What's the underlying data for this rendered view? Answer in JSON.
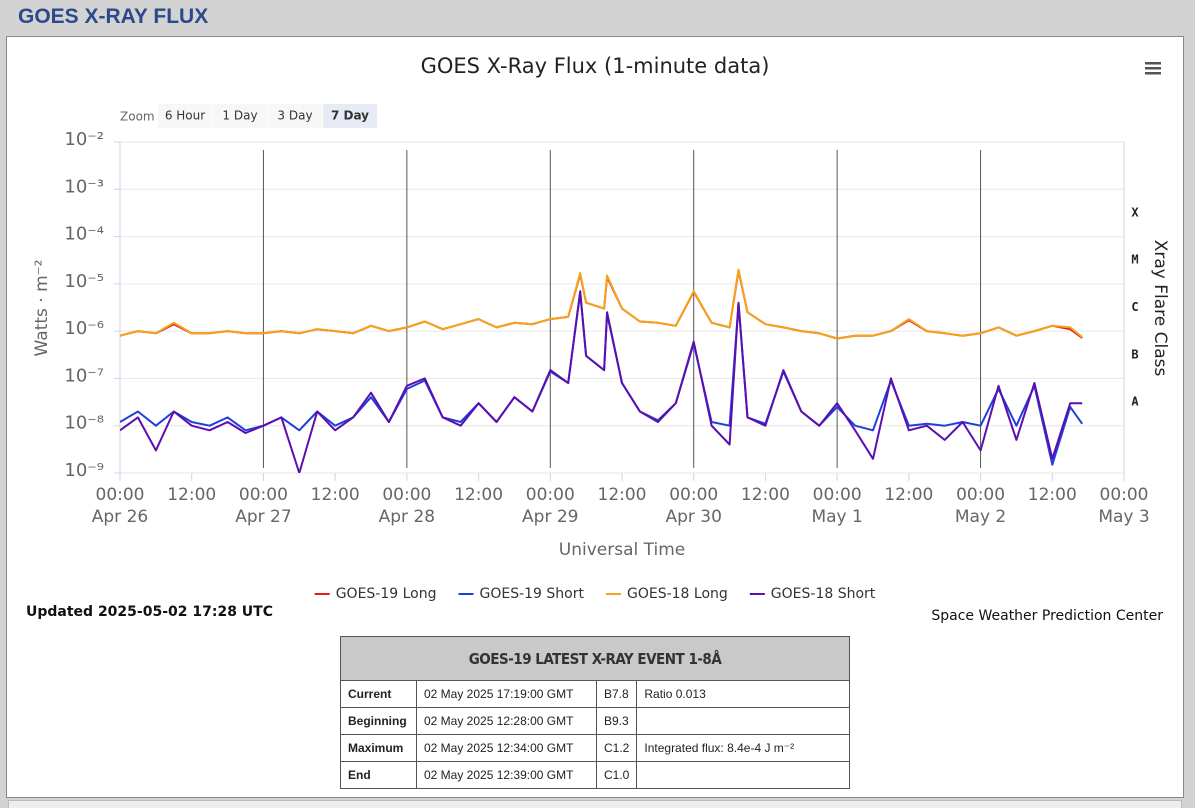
{
  "header": {
    "title": "GOES X-RAY FLUX"
  },
  "zoom": {
    "label": "Zoom",
    "buttons": [
      "6 Hour",
      "1 Day",
      "3 Day",
      "7 Day"
    ],
    "selected": "7 Day"
  },
  "chart_data": {
    "type": "line",
    "title": "GOES X-Ray Flux (1-minute data)",
    "y_label": "Watts · m⁻²",
    "x_label": "Universal Time",
    "y2_label": "Xray Flare Class",
    "log_y": true,
    "grid": true,
    "legend": "bottom",
    "ylim": [
      1e-09,
      0.01
    ],
    "yticks": [
      {
        "value": 1e-09,
        "label": "10⁻⁹"
      },
      {
        "value": 1e-08,
        "label": "10⁻⁸"
      },
      {
        "value": 1e-07,
        "label": "10⁻⁷"
      },
      {
        "value": 1e-06,
        "label": "10⁻⁶"
      },
      {
        "value": 1e-05,
        "label": "10⁻⁵"
      },
      {
        "value": 0.0001,
        "label": "10⁻⁴"
      },
      {
        "value": 0.001,
        "label": "10⁻³"
      },
      {
        "value": 0.01,
        "label": "10⁻²"
      }
    ],
    "y2lim": [
      1e-09,
      0.01
    ],
    "y2ticks": [
      {
        "value": 3.16e-08,
        "label": "A"
      },
      {
        "value": 3.16e-07,
        "label": "B"
      },
      {
        "value": 3.16e-06,
        "label": "C"
      },
      {
        "value": 3.16e-05,
        "label": "M"
      },
      {
        "value": 0.000316,
        "label": "X"
      }
    ],
    "xlim": [
      "Apr 26 00:00",
      "May 3 00:00"
    ],
    "xticks": [
      {
        "value": "Apr 26 00:00",
        "label": "00:00",
        "date": "Apr 26"
      },
      {
        "value": "Apr 26 12:00",
        "label": "12:00"
      },
      {
        "value": "Apr 27 00:00",
        "label": "00:00",
        "date": "Apr 27"
      },
      {
        "value": "Apr 27 12:00",
        "label": "12:00"
      },
      {
        "value": "Apr 28 00:00",
        "label": "00:00",
        "date": "Apr 28"
      },
      {
        "value": "Apr 28 12:00",
        "label": "12:00"
      },
      {
        "value": "Apr 29 00:00",
        "label": "00:00",
        "date": "Apr 29"
      },
      {
        "value": "Apr 29 12:00",
        "label": "12:00"
      },
      {
        "value": "Apr 30 00:00",
        "label": "00:00",
        "date": "Apr 30"
      },
      {
        "value": "Apr 30 12:00",
        "label": "12:00"
      },
      {
        "value": "May 1 00:00",
        "label": "00:00",
        "date": "May 1"
      },
      {
        "value": "May 1 12:00",
        "label": "12:00"
      },
      {
        "value": "May 2 00:00",
        "label": "00:00",
        "date": "May 2"
      },
      {
        "value": "May 2 12:00",
        "label": "12:00"
      },
      {
        "value": "May 3 00:00",
        "label": "00:00",
        "date": "May 3"
      }
    ],
    "x": [
      "Apr 26 00:00",
      "Apr 26 03:00",
      "Apr 26 06:00",
      "Apr 26 09:00",
      "Apr 26 12:00",
      "Apr 26 15:00",
      "Apr 26 18:00",
      "Apr 26 21:00",
      "Apr 27 00:00",
      "Apr 27 03:00",
      "Apr 27 06:00",
      "Apr 27 09:00",
      "Apr 27 12:00",
      "Apr 27 15:00",
      "Apr 27 18:00",
      "Apr 27 21:00",
      "Apr 28 00:00",
      "Apr 28 03:00",
      "Apr 28 06:00",
      "Apr 28 09:00",
      "Apr 28 12:00",
      "Apr 28 15:00",
      "Apr 28 18:00",
      "Apr 28 21:00",
      "Apr 29 00:00",
      "Apr 29 03:00",
      "Apr 29 05:00",
      "Apr 29 06:00",
      "Apr 29 09:00",
      "Apr 29 09:30",
      "Apr 29 12:00",
      "Apr 29 15:00",
      "Apr 29 18:00",
      "Apr 29 21:00",
      "Apr 30 00:00",
      "Apr 30 03:00",
      "Apr 30 06:00",
      "Apr 30 07:30",
      "Apr 30 09:00",
      "Apr 30 12:00",
      "Apr 30 15:00",
      "Apr 30 18:00",
      "Apr 30 21:00",
      "May 1 00:00",
      "May 1 03:00",
      "May 1 06:00",
      "May 1 09:00",
      "May 1 12:00",
      "May 1 15:00",
      "May 1 18:00",
      "May 1 21:00",
      "May 2 00:00",
      "May 2 03:00",
      "May 2 06:00",
      "May 2 09:00",
      "May 2 12:00",
      "May 2 15:00",
      "May 2 17:00"
    ],
    "series": [
      {
        "name": "GOES-19 Long",
        "color": "#e41a1c",
        "values": [
          8e-07,
          1e-06,
          9e-07,
          1.4e-06,
          9e-07,
          9e-07,
          1e-06,
          9e-07,
          9e-07,
          1e-06,
          9e-07,
          1.1e-06,
          1e-06,
          9e-07,
          1.3e-06,
          1e-06,
          1.2e-06,
          1.6e-06,
          1.1e-06,
          1.4e-06,
          1.8e-06,
          1.2e-06,
          1.5e-06,
          1.4e-06,
          1.8e-06,
          2e-06,
          1.6e-05,
          4e-06,
          3e-06,
          1.4e-05,
          3e-06,
          1.6e-06,
          1.5e-06,
          1.3e-06,
          6.8e-06,
          1.5e-06,
          1.2e-06,
          1.9e-05,
          2.5e-06,
          1.4e-06,
          1.2e-06,
          1e-06,
          9e-07,
          7e-07,
          8e-07,
          8e-07,
          1e-06,
          1.7e-06,
          1e-06,
          9e-07,
          8e-07,
          9e-07,
          1.2e-06,
          8e-07,
          1e-06,
          1.3e-06,
          1.1e-06,
          7.2e-07
        ]
      },
      {
        "name": "GOES-19 Short",
        "color": "#1f3fdc",
        "values": [
          1.2e-08,
          2e-08,
          1e-08,
          2e-08,
          1.2e-08,
          1e-08,
          1.5e-08,
          8e-09,
          1e-08,
          1.5e-08,
          8e-09,
          2e-08,
          1e-08,
          1.5e-08,
          4e-08,
          1.2e-08,
          6e-08,
          9e-08,
          1.5e-08,
          1.2e-08,
          3e-08,
          1.2e-08,
          4e-08,
          2e-08,
          1.4e-07,
          8e-08,
          6.5e-06,
          3e-07,
          1.5e-07,
          2.3e-06,
          8e-08,
          2e-08,
          1.3e-08,
          3e-08,
          5.5e-07,
          1.2e-08,
          1e-08,
          3.8e-06,
          1.5e-08,
          1.1e-08,
          1.4e-07,
          2e-08,
          1e-08,
          2.5e-08,
          1e-08,
          8e-09,
          9e-08,
          1e-08,
          1.1e-08,
          1e-08,
          1.2e-08,
          1e-08,
          6e-08,
          1e-08,
          7e-08,
          1.5e-09,
          2.5e-08,
          1.1e-08
        ]
      },
      {
        "name": "GOES-18 Long",
        "color": "#f5a31a",
        "values": [
          8e-07,
          1e-06,
          9e-07,
          1.5e-06,
          9e-07,
          9e-07,
          1e-06,
          9e-07,
          9e-07,
          1e-06,
          9e-07,
          1.1e-06,
          1e-06,
          9e-07,
          1.3e-06,
          1e-06,
          1.2e-06,
          1.6e-06,
          1.1e-06,
          1.4e-06,
          1.8e-06,
          1.2e-06,
          1.5e-06,
          1.4e-06,
          1.8e-06,
          2e-06,
          1.7e-05,
          4e-06,
          3e-06,
          1.5e-05,
          3e-06,
          1.6e-06,
          1.5e-06,
          1.3e-06,
          7e-06,
          1.5e-06,
          1.2e-06,
          2e-05,
          2.5e-06,
          1.4e-06,
          1.2e-06,
          1e-06,
          9e-07,
          7e-07,
          8e-07,
          8e-07,
          1e-06,
          1.8e-06,
          1e-06,
          9e-07,
          8e-07,
          9e-07,
          1.2e-06,
          8e-07,
          1e-06,
          1.3e-06,
          1.2e-06,
          7.5e-07
        ]
      },
      {
        "name": "GOES-18 Short",
        "color": "#5b0fb0",
        "values": [
          8e-09,
          1.5e-08,
          3e-09,
          2e-08,
          1e-08,
          8e-09,
          1.2e-08,
          7e-09,
          1e-08,
          1.5e-08,
          1e-09,
          2e-08,
          8e-09,
          1.5e-08,
          5e-08,
          1.2e-08,
          7e-08,
          1e-07,
          1.5e-08,
          1e-08,
          3e-08,
          1.2e-08,
          4e-08,
          2e-08,
          1.5e-07,
          8e-08,
          7e-06,
          3e-07,
          1.5e-07,
          2.5e-06,
          8e-08,
          2e-08,
          1.2e-08,
          3e-08,
          6e-07,
          1e-08,
          4e-09,
          4e-06,
          1.5e-08,
          1e-08,
          1.5e-07,
          2e-08,
          1e-08,
          3e-08,
          8e-09,
          2e-09,
          1e-07,
          8e-09,
          1e-08,
          5e-09,
          1.2e-08,
          3e-09,
          7e-08,
          5e-09,
          8e-08,
          2e-09,
          3e-08,
          3e-08
        ]
      }
    ]
  },
  "updated": "Updated 2025-05-02 17:28 UTC",
  "credit": "Space Weather Prediction Center",
  "table": {
    "title": "GOES-19 LATEST X-RAY EVENT 1-8Å",
    "rows": [
      [
        "Current",
        "02 May 2025 17:19:00 GMT",
        "B7.8",
        "Ratio 0.013"
      ],
      [
        "Beginning",
        "02 May 2025 12:28:00 GMT",
        "B9.3"
      ],
      [
        "Maximum",
        "02 May 2025 12:34:00 GMT",
        "C1.2",
        "Integrated flux: 8.4e-4 J m⁻²"
      ],
      [
        "End",
        "02 May 2025 12:39:00 GMT",
        "C1.0"
      ]
    ]
  }
}
